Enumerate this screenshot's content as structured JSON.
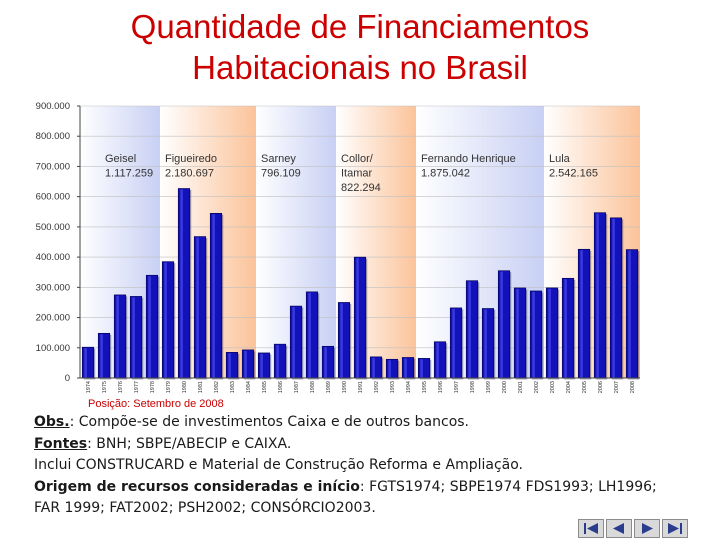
{
  "title": {
    "line1": "Quantidade de Financiamentos",
    "line2": "Habitacionais no Brasil"
  },
  "chart_data": {
    "type": "bar",
    "ylim": [
      0,
      900000
    ],
    "yticks": [
      {
        "value": 0,
        "label": "0"
      },
      {
        "value": 100000,
        "label": "100.000"
      },
      {
        "value": 200000,
        "label": "200.000"
      },
      {
        "value": 300000,
        "label": "300.000"
      },
      {
        "value": 400000,
        "label": "400.000"
      },
      {
        "value": 500000,
        "label": "500.000"
      },
      {
        "value": 600000,
        "label": "600.000"
      },
      {
        "value": 700000,
        "label": "700.000"
      },
      {
        "value": 800000,
        "label": "800.000"
      },
      {
        "value": 900000,
        "label": "900.000"
      }
    ],
    "categories": [
      "1974",
      "1975",
      "1976",
      "1977",
      "1978",
      "1979",
      "1980",
      "1981",
      "1982",
      "1983",
      "1984",
      "1985",
      "1986",
      "1987",
      "1988",
      "1989",
      "1990",
      "1991",
      "1992",
      "1993",
      "1994",
      "1995",
      "1996",
      "1997",
      "1998",
      "1999",
      "2000",
      "2001",
      "2002",
      "2003",
      "2004",
      "2005",
      "2006",
      "2007",
      "2008"
    ],
    "values": [
      102000,
      148000,
      275000,
      270000,
      340000,
      385000,
      627000,
      468000,
      545000,
      85000,
      93000,
      83000,
      112000,
      238000,
      285000,
      105000,
      250000,
      400000,
      70000,
      62000,
      68000,
      65000,
      120000,
      232000,
      322000,
      230000,
      355000,
      298000,
      288000,
      298000,
      330000,
      426000,
      547000,
      530000,
      425000
    ],
    "grid": true,
    "bar_color": "#1212b8",
    "periods": [
      {
        "label": "Geisel",
        "total": "1.117.259",
        "start": 0,
        "end": 5,
        "color": "#c8d0f4"
      },
      {
        "label": "Figueiredo",
        "total": "2.180.697",
        "start": 5,
        "end": 11,
        "color": "#fbc39a"
      },
      {
        "label": "Sarney",
        "total": "796.109",
        "start": 11,
        "end": 16,
        "color": "#c8d0f4"
      },
      {
        "label": "Collor/ Itamar",
        "label_line1": "Collor/",
        "label_line2": "Itamar",
        "total": "822.294",
        "start": 16,
        "end": 21,
        "color": "#fbc39a"
      },
      {
        "label": "Fernando Henrique",
        "total": "1.875.042",
        "start": 21,
        "end": 29,
        "color": "#c8d0f4"
      },
      {
        "label": "Lula",
        "total": "2.542.165",
        "start": 29,
        "end": 35,
        "color": "#fbc39a"
      }
    ]
  },
  "position_note": "Posição: Setembro de 2008",
  "notes": {
    "obs_label": "Obs.",
    "obs_text": ": Compõe-se de investimentos Caixa e de outros bancos.",
    "fontes_label": "Fontes",
    "fontes_text": ": BNH; SBPE/ABECIP e CAIXA.",
    "inclui_text": "Inclui CONSTRUCARD e Material de Construção Reforma e Ampliação.",
    "origem_label": "Origem de recursos consideradas e início",
    "origem_text1": ": FGTS1974; SBPE1974 FDS1993; LH1996;",
    "origem_text2": "FAR 1999; FAT2002; PSH2002; CONSÓRCIO2003."
  },
  "nav": {
    "icons": [
      "first-icon",
      "previous-icon",
      "next-icon",
      "last-icon"
    ]
  }
}
